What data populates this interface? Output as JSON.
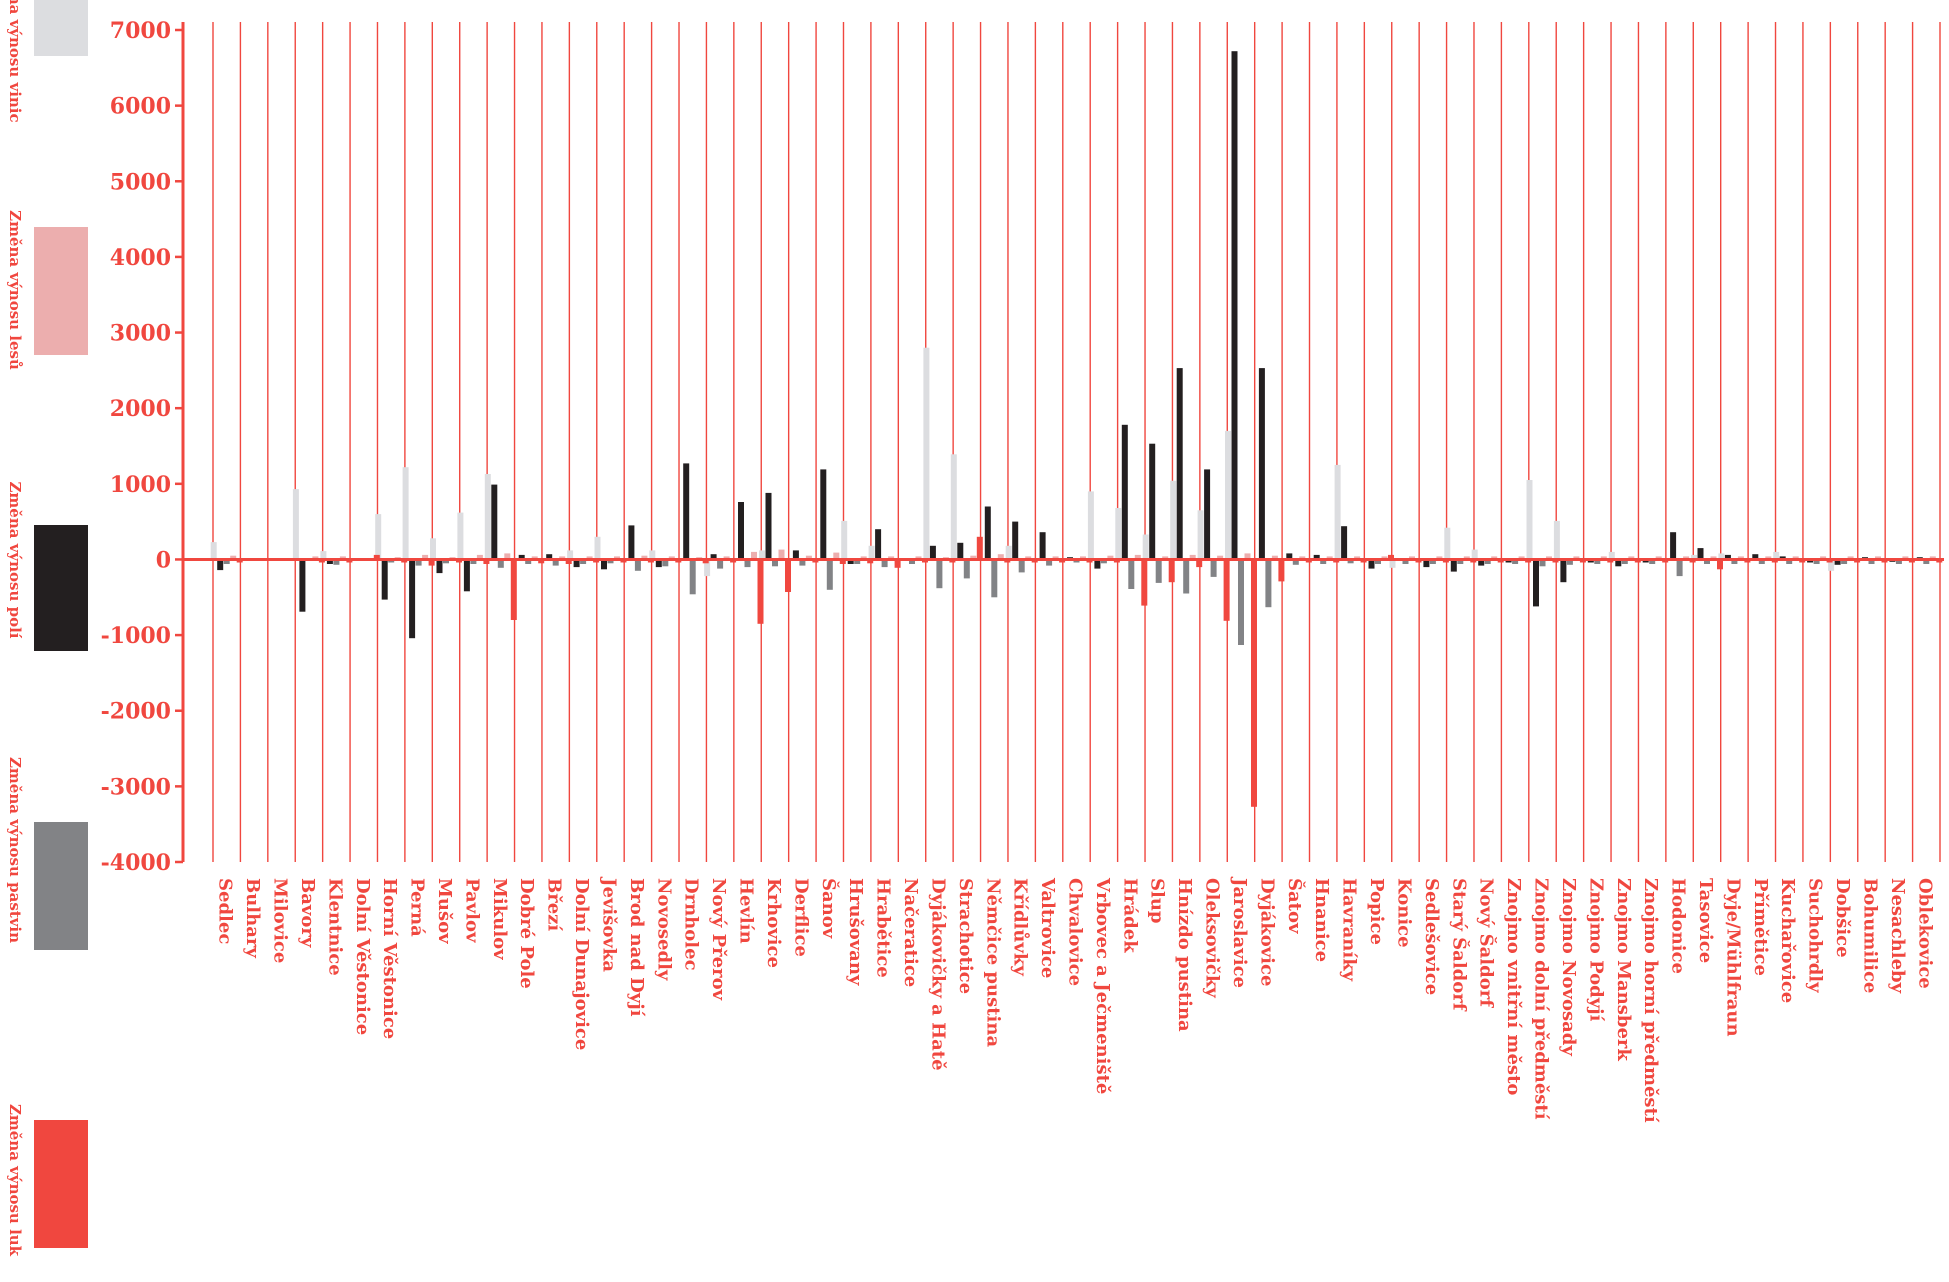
{
  "chart_data": {
    "type": "bar",
    "title": "",
    "xlabel": "",
    "ylabel": "",
    "ylim": [
      -4000,
      7000
    ],
    "yticks": [
      7000,
      6000,
      5000,
      4000,
      3000,
      2000,
      1000,
      0,
      -1000,
      -2000,
      -3000,
      -4000
    ],
    "ytick_labels": [
      "7000",
      "6000",
      "5000",
      "4000",
      "3000",
      "2000",
      "1000",
      "0",
      "-1000",
      "-2000",
      "-3000",
      "-4000"
    ],
    "grid": "vertical lines between categories",
    "legend_position": "left",
    "colors": {
      "axis": "#f0473f",
      "vinic": "#dcdde0",
      "lesu": "#ecaeae",
      "poli": "#231f20",
      "pastvin": "#828386",
      "luk": "#f0473f"
    },
    "categories": [
      "Sedlec",
      "Bulhary",
      "Milovice",
      "Bavory",
      "Klentnice",
      "Dolní Věstonice",
      "Horní Věstonice",
      "Perná",
      "Mušov",
      "Pavlov",
      "Mikulov",
      "Dobré Pole",
      "Březí",
      "Dolní Dunajovice",
      "Jevišovka",
      "Brod nad Dyjí",
      "Novosedly",
      "Drnholec",
      "Nový Přerov",
      "Hevlín",
      "Krhovice",
      "Derflice",
      "Šanov",
      "Hrušovany",
      "Hrabětice",
      "Načeratice",
      "Dyjákovičky a Hatě",
      "Strachotice",
      "Němčice pustina",
      "Křídlůvky",
      "Valtrovice",
      "Chvalovice",
      "Vrbovec a Ječmeniště",
      "Hrádek",
      "Slup",
      "Hnízdo pustina",
      "Oleksovičky",
      "Jaroslavice",
      "Dyjákovice",
      "Šatov",
      "Hnanice",
      "Havraníky",
      "Popice",
      "Konice",
      "Sedlešovice",
      "Starý Šaldorf",
      "Nový Šaldorf",
      "Znojmo vnitřní město",
      "Znojmo dolní předměstí",
      "Znojmo Novosady",
      "Znojmo Podyjí",
      "Znojmo Mansberk",
      "Znojmo horní předměstí",
      "Hodonice",
      "Tasovice",
      "Dyje/Mühlfraun",
      "Přímětice",
      "Kuchařovice",
      "Suchohrdly",
      "Dobšice",
      "Bohumilice",
      "Nesachleby",
      "Oblekovice"
    ],
    "series": [
      {
        "name": "Změna výnosu vinic",
        "color": "#dcdde0",
        "values": [
          230,
          0,
          0,
          930,
          110,
          0,
          600,
          1220,
          280,
          620,
          1130,
          0,
          0,
          120,
          300,
          0,
          120,
          0,
          -220,
          0,
          120,
          0,
          0,
          510,
          180,
          0,
          2800,
          1390,
          0,
          180,
          0,
          0,
          900,
          680,
          330,
          1040,
          650,
          1700,
          0,
          0,
          0,
          1250,
          0,
          -110,
          0,
          420,
          130,
          0,
          1050,
          510,
          0,
          100,
          0,
          0,
          60,
          80,
          0,
          100,
          0,
          -150,
          0,
          0,
          0
        ]
      },
      {
        "name": "Změna výnosu polí",
        "color": "#231f20",
        "values": [
          -140,
          0,
          0,
          -690,
          -60,
          0,
          -530,
          -1040,
          -180,
          -420,
          990,
          60,
          70,
          -100,
          -130,
          450,
          -100,
          1270,
          70,
          760,
          880,
          120,
          1190,
          -60,
          400,
          0,
          180,
          220,
          700,
          500,
          360,
          30,
          -120,
          1780,
          1530,
          2530,
          1190,
          6720,
          2530,
          80,
          60,
          440,
          -120,
          0,
          -100,
          -160,
          -80,
          -40,
          -620,
          -300,
          -40,
          -90,
          -40,
          360,
          150,
          60,
          70,
          40,
          -40,
          -70,
          30,
          -30,
          30
        ]
      },
      {
        "name": "Změna výnosu pastvin",
        "color": "#828386",
        "values": [
          -60,
          0,
          0,
          0,
          -70,
          0,
          -40,
          -80,
          -50,
          -60,
          -110,
          -60,
          -80,
          -60,
          -50,
          -150,
          -90,
          -460,
          -120,
          -100,
          -90,
          -80,
          -400,
          -60,
          -100,
          -60,
          -380,
          -250,
          -500,
          -170,
          -80,
          -40,
          -50,
          -390,
          -310,
          -450,
          -230,
          -1130,
          -630,
          -70,
          -60,
          -50,
          -60,
          -60,
          -60,
          -60,
          -60,
          -60,
          -90,
          -70,
          -60,
          -60,
          -60,
          -220,
          -60,
          -60,
          -60,
          -60,
          -60,
          -60,
          -60,
          -60,
          -60
        ]
      },
      {
        "name": "Změna výnosu lesů",
        "color": "#ecaeae",
        "values": [
          50,
          0,
          0,
          40,
          40,
          0,
          30,
          60,
          30,
          60,
          80,
          40,
          40,
          40,
          40,
          50,
          40,
          30,
          40,
          100,
          130,
          50,
          90,
          40,
          40,
          40,
          30,
          50,
          70,
          40,
          40,
          40,
          50,
          60,
          40,
          60,
          50,
          80,
          50,
          40,
          40,
          40,
          40,
          40,
          40,
          40,
          40,
          40,
          40,
          40,
          40,
          40,
          40,
          40,
          40,
          40,
          40,
          40,
          40,
          40,
          40,
          40,
          40
        ]
      },
      {
        "name": "Změna výnosu luk",
        "color": "#f0473f",
        "values": [
          -40,
          0,
          0,
          -40,
          -40,
          60,
          -40,
          -80,
          -40,
          -60,
          -800,
          -50,
          -60,
          -40,
          -40,
          -40,
          -40,
          -50,
          -40,
          -850,
          -430,
          -40,
          -60,
          -50,
          -110,
          -40,
          -40,
          300,
          -40,
          -40,
          -40,
          -40,
          -40,
          -610,
          -300,
          -100,
          -810,
          -3270,
          -290,
          -40,
          -40,
          -40,
          60,
          -40,
          -40,
          -40,
          -40,
          -40,
          -40,
          -40,
          -40,
          -40,
          -40,
          -40,
          -130,
          -40,
          -40,
          -40,
          -40,
          -40,
          -40,
          -40,
          -40
        ]
      }
    ]
  }
}
